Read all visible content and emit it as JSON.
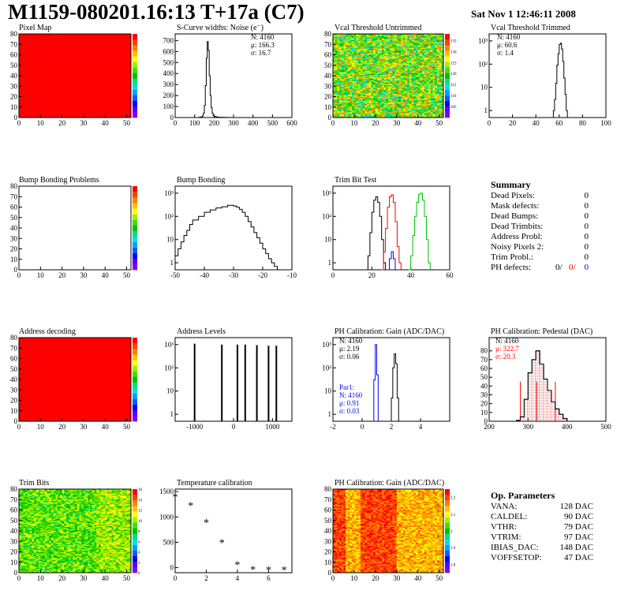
{
  "header": {
    "title": "M1159-080201.16:13 T+17a (C7)",
    "date": "Sat Nov  1 12:46:11 2008"
  },
  "panels": [
    {
      "id": "pixel_map",
      "title": "Pixel Map"
    },
    {
      "id": "scurve",
      "title": "S-Curve widths: Noise (e⁻)",
      "stats": [
        "N: 4160",
        "μ: 166.3",
        "σ: 16.7"
      ]
    },
    {
      "id": "vcal_untrimmed",
      "title": "Vcal Threshold Untrimmed"
    },
    {
      "id": "vcal_trimmed",
      "title": "Vcal Threshold Trimmed",
      "stats": [
        "N: 4160",
        "μ: 60.6",
        "σ:  1.4"
      ]
    },
    {
      "id": "bump_problems",
      "title": "Bump Bonding Problems"
    },
    {
      "id": "bump_bonding",
      "title": "Bump Bonding"
    },
    {
      "id": "trim_bit_test",
      "title": "Trim Bit Test"
    },
    {
      "id": "address_decoding",
      "title": "Address decoding"
    },
    {
      "id": "address_levels",
      "title": "Address Levels"
    },
    {
      "id": "ph_gain",
      "title": "PH Calibration: Gain (ADC/DAC)",
      "stats": [
        "N: 4160",
        "μ: 2.19",
        "σ: 0.06"
      ],
      "stats2": [
        "Par1:",
        "N: 4160",
        "μ: 0.91",
        "σ: 0.03"
      ]
    },
    {
      "id": "ph_pedestal",
      "title": "PH Calibration: Pedestal (DAC)",
      "stats": [
        "N: 4160",
        "μ: 322.7",
        "σ: 20.3"
      ]
    },
    {
      "id": "trim_bits",
      "title": "Trim Bits"
    },
    {
      "id": "temperature",
      "title": "Temperature calibration"
    },
    {
      "id": "ph_gain_map",
      "title": "PH Calibration: Gain (ADC/DAC)"
    }
  ],
  "summary": {
    "title": "Summary",
    "rows": [
      {
        "label": "Dead Pixels:",
        "value": "0"
      },
      {
        "label": "Mask defects:",
        "value": "0"
      },
      {
        "label": "Dead Bumps:",
        "value": "0"
      },
      {
        "label": "Dead Trimbits:",
        "value": "0"
      },
      {
        "label": "Address Probl:",
        "value": "0"
      },
      {
        "label": "Noisy Pixels 2:",
        "value": "0"
      },
      {
        "label": "Trim Probl.:",
        "value": "0"
      }
    ],
    "ph_defects": {
      "label": "PH defects:",
      "values": [
        "0/",
        "0/",
        "0"
      ]
    }
  },
  "op_params": {
    "title": "Op. Parameters",
    "rows": [
      {
        "label": "VANA:",
        "value": "128 DAC"
      },
      {
        "label": "CALDEL:",
        "value": "90 DAC"
      },
      {
        "label": "VTHR:",
        "value": "79 DAC"
      },
      {
        "label": "VTRIM:",
        "value": "97 DAC"
      },
      {
        "label": "IBIAS_DAC:",
        "value": "148 DAC"
      },
      {
        "label": "VOFFSETOP:",
        "value": "47 DAC"
      }
    ]
  },
  "colors": {
    "red": "#ff0000",
    "green": "#00c000",
    "blue": "#0000ff",
    "black": "#000000"
  },
  "chart_data": [
    {
      "id": "pixel_map",
      "type": "heatmap",
      "xlim": [
        0,
        52
      ],
      "ylim": [
        0,
        80
      ],
      "xticks": [
        0,
        10,
        20,
        30,
        40,
        50
      ],
      "yticks": [
        0,
        10,
        20,
        30,
        40,
        50,
        60,
        70,
        80
      ],
      "zrange": [
        0,
        10
      ],
      "fill": "#ff0000"
    },
    {
      "id": "scurve",
      "type": "line",
      "xlim": [
        0,
        600
      ],
      "ylim": [
        0,
        760
      ],
      "xticks": [
        0,
        100,
        200,
        300,
        400,
        500,
        600
      ],
      "yticks": [
        0,
        100,
        200,
        300,
        400,
        500,
        600,
        700
      ],
      "x": [
        100,
        120,
        130,
        140,
        145,
        150,
        155,
        160,
        165,
        170,
        175,
        180,
        185,
        190,
        195,
        200,
        210,
        220,
        240,
        260,
        280
      ],
      "y": [
        0,
        2,
        5,
        15,
        40,
        110,
        290,
        540,
        690,
        610,
        380,
        200,
        90,
        40,
        20,
        10,
        5,
        3,
        2,
        1,
        0
      ]
    },
    {
      "id": "vcal_untrimmed",
      "type": "heatmap",
      "xlim": [
        0,
        52
      ],
      "ylim": [
        0,
        80
      ],
      "xticks": [
        0,
        10,
        20,
        30,
        40,
        50
      ],
      "yticks": [
        0,
        10,
        20,
        30,
        40,
        50,
        60,
        70,
        80
      ],
      "zticks": [
        105,
        110,
        115,
        120,
        125,
        130,
        135
      ],
      "zrange": [
        100,
        138
      ]
    },
    {
      "id": "vcal_trimmed",
      "type": "line",
      "log_y": true,
      "xlim": [
        0,
        100
      ],
      "ylim": [
        0.5,
        2000
      ],
      "xticks": [
        0,
        20,
        40,
        60,
        80,
        100
      ],
      "ytick_labels": [
        "1",
        "10",
        "10²",
        "10³"
      ],
      "x": [
        54,
        55,
        56,
        57,
        58,
        59,
        60,
        61,
        62,
        63,
        64,
        65,
        66,
        67
      ],
      "y": [
        0.5,
        1,
        3,
        15,
        90,
        280,
        700,
        800,
        450,
        130,
        25,
        5,
        1,
        0.5
      ]
    },
    {
      "id": "bump_problems",
      "type": "heatmap",
      "xlim": [
        0,
        52
      ],
      "ylim": [
        0,
        80
      ],
      "xticks": [
        0,
        10,
        20,
        30,
        40,
        50
      ],
      "yticks": [
        0,
        10,
        20,
        30,
        40,
        50,
        60,
        70,
        80
      ],
      "zrange": [
        -5,
        5
      ],
      "fill": "#ffffff"
    },
    {
      "id": "bump_bonding",
      "type": "line",
      "log_y": true,
      "xlim": [
        -50,
        -10
      ],
      "ylim": [
        0.5,
        2000
      ],
      "xticks": [
        -50,
        -40,
        -30,
        -20,
        -10
      ],
      "ytick_labels": [
        "1",
        "10",
        "10²",
        "10³"
      ],
      "x": [
        -50,
        -49,
        -48,
        -47,
        -46,
        -45,
        -44,
        -42,
        -40,
        -38,
        -36,
        -34,
        -32,
        -30,
        -29,
        -28,
        -27,
        -26,
        -25,
        -24,
        -23,
        -22,
        -21,
        -20,
        -19,
        -18,
        -17,
        -16,
        -15
      ],
      "y": [
        2,
        4,
        8,
        15,
        25,
        45,
        70,
        100,
        150,
        190,
        230,
        260,
        300,
        280,
        250,
        200,
        150,
        100,
        60,
        35,
        20,
        12,
        7,
        4,
        2.5,
        1.5,
        1,
        0.7,
        0.5
      ]
    },
    {
      "id": "trim_bit_test",
      "type": "line",
      "log_y": true,
      "xlim": [
        0,
        60
      ],
      "ylim": [
        0.5,
        2000
      ],
      "xticks": [
        0,
        20,
        40,
        60
      ],
      "ytick_labels": [
        "1",
        "10",
        "10²",
        "10³"
      ],
      "series": [
        {
          "color": "#000000",
          "x": [
            17,
            18,
            19,
            20,
            21,
            22,
            23,
            24,
            25,
            26,
            27
          ],
          "y": [
            0.5,
            2,
            20,
            150,
            500,
            700,
            400,
            100,
            10,
            1,
            0.5
          ]
        },
        {
          "color": "#ff0000",
          "x": [
            25,
            26,
            27,
            28,
            29,
            30,
            31,
            32,
            33,
            34,
            35
          ],
          "y": [
            0.5,
            3,
            30,
            250,
            700,
            850,
            400,
            60,
            5,
            1,
            0.5
          ]
        },
        {
          "color": "#00c000",
          "x": [
            39,
            40,
            41,
            42,
            43,
            44,
            45,
            46,
            47,
            48,
            49,
            50
          ],
          "y": [
            0.5,
            2,
            15,
            100,
            400,
            900,
            1000,
            500,
            100,
            10,
            1,
            0.5
          ]
        },
        {
          "color": "#0000ff",
          "x": [
            28,
            29,
            30,
            31,
            32
          ],
          "y": [
            0.5,
            1.5,
            3,
            1.5,
            0.5
          ]
        }
      ]
    },
    {
      "id": "address_decoding",
      "type": "heatmap",
      "xlim": [
        0,
        52
      ],
      "ylim": [
        0,
        80
      ],
      "xticks": [
        0,
        10,
        20,
        30,
        40,
        50
      ],
      "yticks": [
        0,
        10,
        20,
        30,
        40,
        50,
        60,
        70,
        80
      ],
      "zrange": [
        0,
        1
      ],
      "fill": "#ff0000"
    },
    {
      "id": "address_levels",
      "type": "bar",
      "log_y": true,
      "xlim": [
        -1500,
        1500
      ],
      "ylim": [
        0.5,
        2000
      ],
      "xticks": [
        -1000,
        0,
        1000
      ],
      "ytick_labels": [
        "1",
        "10",
        "10²",
        "10³"
      ],
      "peaks": [
        -1000,
        -300,
        100,
        300,
        600,
        900,
        1100
      ],
      "heights": [
        1100,
        1000,
        1000,
        1000,
        950,
        900,
        900
      ]
    },
    {
      "id": "ph_gain",
      "type": "line",
      "log_y": true,
      "xlim": [
        -2,
        6
      ],
      "ylim": [
        0.5,
        2000
      ],
      "xticks": [
        -2,
        0,
        2,
        4
      ],
      "ytick_labels": [
        "1",
        "10",
        "10²",
        "10³"
      ],
      "series": [
        {
          "color": "#000000",
          "x": [
            1.9,
            2.0,
            2.1,
            2.2,
            2.3,
            2.4,
            2.5
          ],
          "y": [
            0.5,
            5,
            100,
            400,
            150,
            5,
            0.5
          ]
        },
        {
          "color": "#0000ff",
          "x": [
            0.7,
            0.8,
            0.9,
            1.0,
            1.1
          ],
          "y": [
            0.5,
            30,
            1000,
            50,
            0.5
          ]
        }
      ]
    },
    {
      "id": "ph_pedestal",
      "type": "line",
      "xlim": [
        200,
        500
      ],
      "ylim": [
        0,
        95
      ],
      "xticks": [
        200,
        300,
        400,
        500
      ],
      "yticks": [
        0,
        10,
        20,
        30,
        40,
        50,
        60,
        70,
        80
      ],
      "x": [
        260,
        270,
        280,
        290,
        300,
        310,
        320,
        330,
        340,
        350,
        360,
        370,
        380,
        390,
        400
      ],
      "y": [
        0,
        1,
        5,
        25,
        55,
        70,
        80,
        65,
        48,
        35,
        22,
        14,
        8,
        3,
        1
      ],
      "markers": [
        280,
        322,
        370
      ]
    },
    {
      "id": "trim_bits",
      "type": "heatmap",
      "xlim": [
        0,
        52
      ],
      "ylim": [
        0,
        80
      ],
      "xticks": [
        0,
        10,
        20,
        30,
        40,
        50
      ],
      "yticks": [
        0,
        10,
        20,
        30,
        40,
        50,
        60,
        70,
        80
      ],
      "zticks": [
        0,
        2,
        4,
        6,
        8,
        10,
        12,
        14,
        16
      ],
      "zrange": [
        0,
        16
      ]
    },
    {
      "id": "temperature",
      "type": "scatter",
      "xlim": [
        0,
        7.5
      ],
      "ylim": [
        -100,
        1550
      ],
      "xticks": [
        0,
        2,
        4,
        6
      ],
      "yticks": [
        0,
        500,
        1000,
        1500
      ],
      "x": [
        0,
        1,
        2,
        3,
        4,
        5,
        6,
        7
      ],
      "y": [
        1400,
        1230,
        900,
        500,
        60,
        -30,
        -40,
        -40
      ]
    },
    {
      "id": "ph_gain_map",
      "type": "heatmap",
      "xlim": [
        0,
        52
      ],
      "ylim": [
        0,
        80
      ],
      "xticks": [
        0,
        10,
        20,
        30,
        40,
        50
      ],
      "yticks": [
        0,
        10,
        20,
        30,
        40,
        50,
        60,
        70,
        80
      ],
      "zticks": [
        1.8,
        1.9,
        2,
        2.1,
        2.2
      ],
      "zrange": [
        1.75,
        2.25
      ]
    }
  ]
}
